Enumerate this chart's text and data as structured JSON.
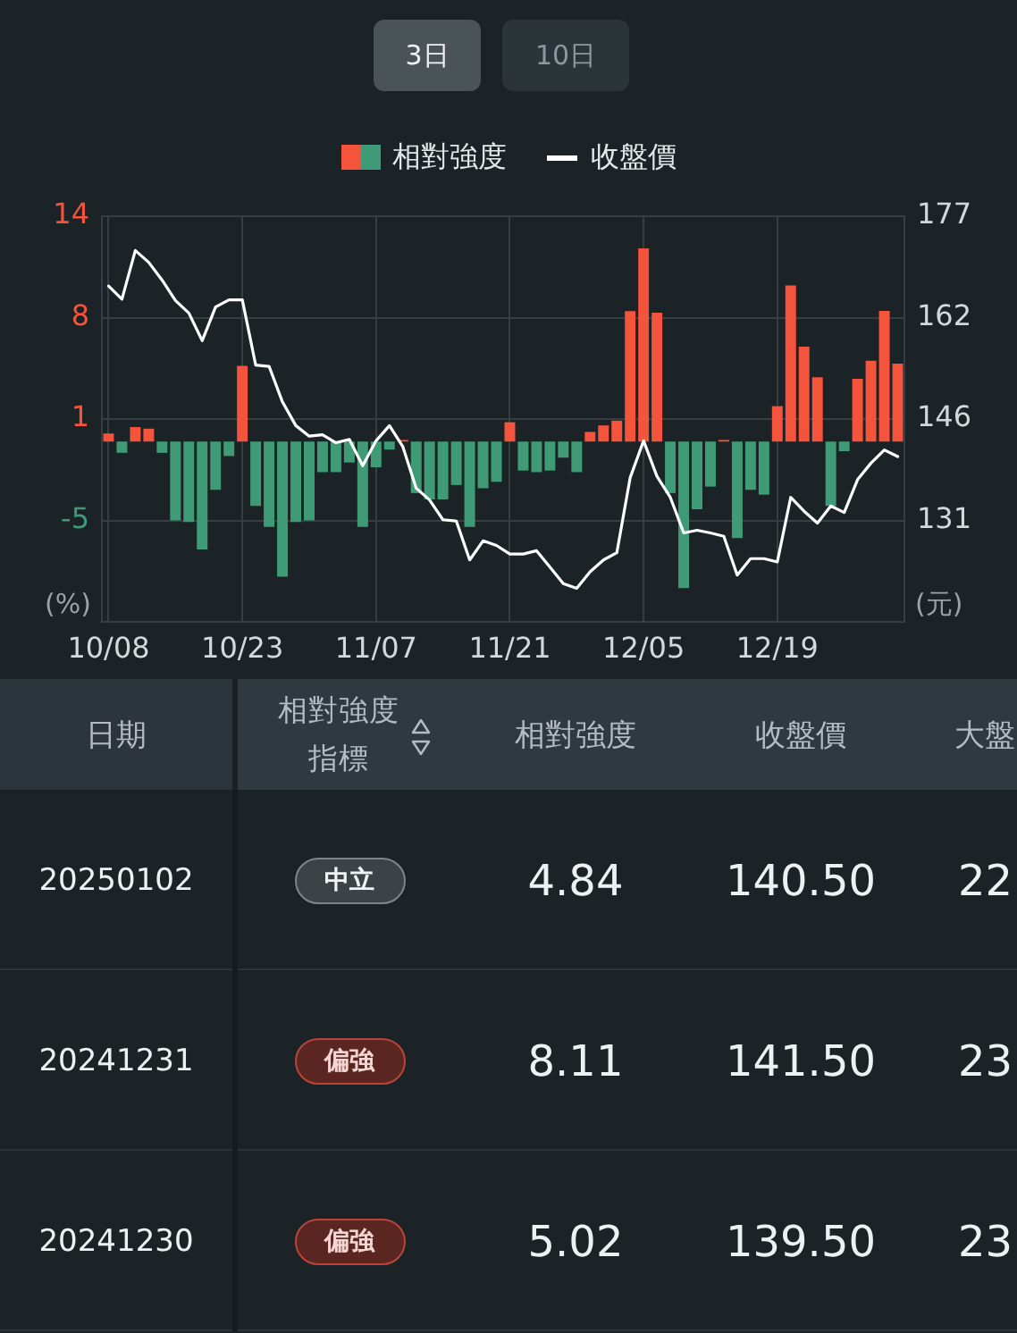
{
  "chart_data": {
    "type": "bar",
    "categories": [
      "10/08",
      null,
      null,
      null,
      null,
      null,
      null,
      null,
      null,
      null,
      "10/23",
      null,
      null,
      null,
      null,
      null,
      null,
      null,
      null,
      null,
      "11/07",
      null,
      null,
      null,
      null,
      null,
      null,
      null,
      null,
      null,
      "11/21",
      null,
      null,
      null,
      null,
      null,
      null,
      null,
      null,
      null,
      "12/05",
      null,
      null,
      null,
      null,
      null,
      null,
      null,
      null,
      null,
      "12/19",
      null,
      null,
      null,
      null,
      null,
      null,
      null,
      null,
      null
    ],
    "series": [
      {
        "name": "相對強度",
        "values": [
          0.5,
          -0.7,
          0.9,
          0.8,
          -0.7,
          -4.9,
          -5.0,
          -6.7,
          -3.0,
          -0.9,
          4.7,
          -4.0,
          -5.3,
          -8.4,
          -5.0,
          -4.9,
          -1.9,
          -1.9,
          -1.3,
          -5.3,
          -1.6,
          -0.5,
          0.1,
          -3.2,
          -3.6,
          -3.6,
          -2.7,
          -5.3,
          -2.9,
          -2.5,
          1.2,
          -1.8,
          -1.9,
          -1.8,
          -1.0,
          -1.9,
          0.6,
          1.0,
          1.3,
          8.1,
          12.0,
          8.0,
          -3.2,
          -9.1,
          -4.2,
          -2.8,
          0.1,
          -6.0,
          -3.0,
          -3.3,
          2.2,
          9.7,
          5.9,
          4.0,
          -4.0,
          -0.6,
          3.9,
          5.02,
          8.11,
          4.84
        ],
        "colors": [
          "#f4533c",
          "#3e9b76",
          "#f4533c",
          "#f4533c",
          "#3e9b76",
          "#3e9b76",
          "#3e9b76",
          "#3e9b76",
          "#3e9b76",
          "#3e9b76",
          "#f4533c",
          "#3e9b76",
          "#3e9b76",
          "#3e9b76",
          "#3e9b76",
          "#3e9b76",
          "#3e9b76",
          "#3e9b76",
          "#3e9b76",
          "#3e9b76",
          "#3e9b76",
          "#3e9b76",
          "#f4533c",
          "#3e9b76",
          "#3e9b76",
          "#3e9b76",
          "#3e9b76",
          "#3e9b76",
          "#3e9b76",
          "#3e9b76",
          "#f4533c",
          "#3e9b76",
          "#3e9b76",
          "#3e9b76",
          "#3e9b76",
          "#3e9b76",
          "#f4533c",
          "#f4533c",
          "#f4533c",
          "#f4533c",
          "#f4533c",
          "#f4533c",
          "#3e9b76",
          "#3e9b76",
          "#3e9b76",
          "#3e9b76",
          "#f4533c",
          "#3e9b76",
          "#3e9b76",
          "#3e9b76",
          "#f4533c",
          "#f4533c",
          "#f4533c",
          "#f4533c",
          "#3e9b76",
          "#3e9b76",
          "#f4533c",
          "#f4533c",
          "#f4533c",
          "#f4533c"
        ]
      },
      {
        "name": "收盤價",
        "type": "line",
        "axis": "y2",
        "color": "#ffffff",
        "values": [
          166.4,
          164.4,
          171.8,
          170.0,
          167.3,
          164.2,
          162.3,
          158.1,
          163.2,
          164.3,
          164.3,
          154.4,
          154.2,
          148.8,
          145.2,
          143.6,
          143.8,
          142.6,
          143.1,
          139.1,
          142.9,
          145.2,
          142.0,
          135.7,
          133.9,
          130.9,
          130.7,
          124.8,
          127.7,
          127.0,
          125.7,
          125.7,
          126.2,
          123.7,
          121.2,
          120.5,
          123.0,
          124.8,
          125.9,
          137.3,
          142.9,
          137.5,
          134.3,
          128.9,
          129.3,
          128.9,
          128.4,
          122.5,
          125.0,
          125.0,
          124.5,
          134.3,
          132.2,
          130.4,
          133.0,
          132.0,
          137.0,
          139.5,
          141.5,
          140.5
        ]
      }
    ],
    "ylim": [
      -11.2,
      14
    ],
    "yticks": [
      14,
      {
        "value": 7.7,
        "label": "8"
      },
      {
        "value": 1.4,
        "label": "1"
      },
      {
        "value": -4.9,
        "label": "-5"
      }
    ],
    "y2lim": [
      115.4,
      177
    ],
    "y2ticks": [
      177,
      {
        "value": 161.6,
        "label": "162"
      },
      {
        "value": 146.2,
        "label": "146"
      },
      {
        "value": 130.8,
        "label": "131"
      }
    ],
    "ylabel": "(%)",
    "y2label": "(元)",
    "grid": true,
    "legend": "top",
    "annotations": [
      "3日",
      "10日",
      "日期",
      "相對強度指標",
      "相對強度",
      "收盤價",
      "大盤",
      "20250102",
      "中立",
      "4.84",
      "140.50",
      "22",
      "20241231",
      "偏強",
      "8.11",
      "141.50",
      "23",
      "20241230",
      "偏強",
      "5.02",
      "139.50",
      "23"
    ]
  }
}
